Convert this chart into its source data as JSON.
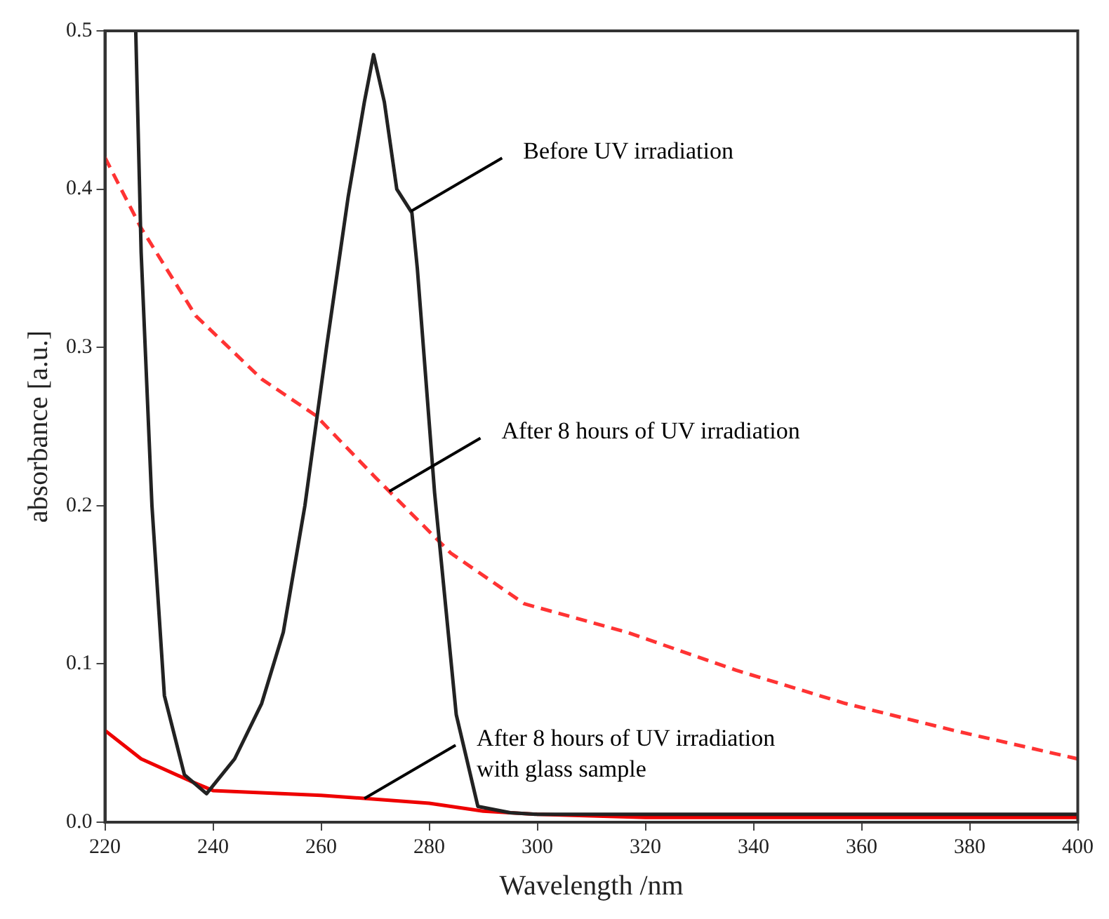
{
  "chart_data": {
    "type": "line",
    "xlabel": "Wavelength /nm",
    "ylabel": "absorbance [a.u.]",
    "xlim": [
      220,
      400
    ],
    "xticks": [
      220,
      240,
      260,
      280,
      300,
      320,
      340,
      360,
      380,
      400
    ],
    "ylim": [
      0,
      0.5
    ],
    "yticks": [
      {
        "value": 0,
        "label": "0.0"
      },
      {
        "value": 0.1,
        "label": "0.1"
      },
      {
        "value": 0.2,
        "label": "0.2"
      },
      {
        "value": 0.3,
        "label": "0.3"
      },
      {
        "value": 0.4,
        "label": "0.4"
      },
      {
        "value": 0.5,
        "label": "0.5"
      }
    ],
    "grid": false,
    "legend": false,
    "marker": "none",
    "series": [
      {
        "color": "#222222",
        "line_style": "solid",
        "x": [
          225.7,
          226.7,
          228.7,
          231,
          234.7,
          238.8,
          244,
          249,
          253,
          257,
          261,
          265,
          268,
          269.7,
          271.7,
          274,
          276.8,
          277.8,
          281,
          285,
          289,
          295,
          300,
          320,
          340,
          360,
          380,
          400
        ],
        "values": [
          0.5,
          0.36,
          0.2,
          0.08,
          0.03,
          0.018,
          0.04,
          0.075,
          0.12,
          0.2,
          0.3,
          0.395,
          0.455,
          0.485,
          0.455,
          0.4,
          0.385,
          0.35,
          0.208,
          0.068,
          0.01,
          0.006,
          0.005,
          0.005,
          0.005,
          0.005,
          0.005,
          0.005
        ]
      },
      {
        "color": "#ff3333",
        "line_style": "dashed",
        "x": [
          220,
          226.6,
          236.8,
          249,
          259,
          270,
          284,
          297.6,
          316.6,
          336.8,
          357,
          377,
          400
        ],
        "values": [
          0.42,
          0.376,
          0.32,
          0.28,
          0.257,
          0.218,
          0.17,
          0.138,
          0.12,
          0.096,
          0.075,
          0.058,
          0.04
        ]
      },
      {
        "color": "#ee0000",
        "line_style": "solid",
        "x": [
          220,
          226.7,
          235.8,
          240,
          260,
          280,
          290,
          300,
          320,
          360,
          400
        ],
        "values": [
          0.058,
          0.04,
          0.026,
          0.02,
          0.017,
          0.012,
          0.007,
          0.005,
          0.003,
          0.003,
          0.003
        ]
      }
    ],
    "annotations": [
      {
        "text": "Before UV irradiation",
        "x": 276.6,
        "y": 0.386
      },
      {
        "text": "After 8 hours of UV irradiation",
        "x": 272.6,
        "y": 0.209
      },
      {
        "text": "After 8 hours of UV irradiation\nwith glass sample",
        "x": 268,
        "y": 0.015
      }
    ]
  }
}
